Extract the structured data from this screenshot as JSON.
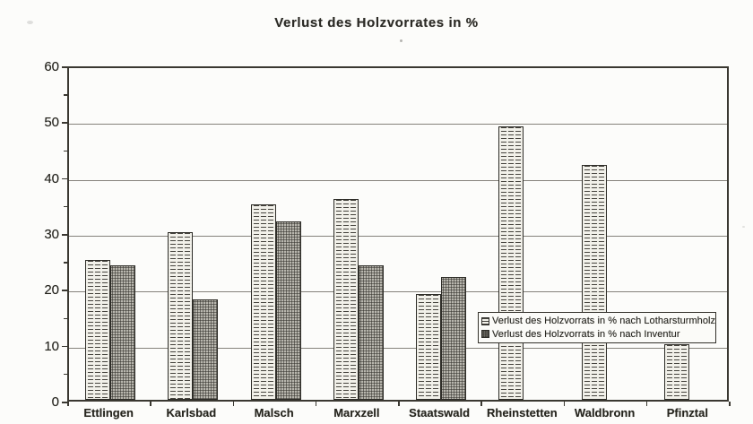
{
  "chart_data": {
    "type": "bar",
    "title": "Verlust des Holzvorrates in %",
    "categories": [
      "Ettlingen",
      "Karlsbad",
      "Malsch",
      "Marxzell",
      "Staatswald",
      "Rheinstetten",
      "Waldbronn",
      "Pfinztal"
    ],
    "series": [
      {
        "name": "Verlust des Holzvorrats in % nach Lotharsturmholz",
        "pattern": "horizontal-dashed-lines-on-white",
        "values": [
          25,
          30,
          35,
          36,
          19,
          49,
          42,
          10
        ]
      },
      {
        "name": "Verlust des Holzvorrats in % nach Inventur",
        "pattern": "dark-gray-speckle",
        "values": [
          24,
          18,
          32,
          24,
          22,
          null,
          null,
          null
        ]
      }
    ],
    "xlabel": "",
    "ylabel": "",
    "ylim": [
      0,
      60
    ],
    "yticks": [
      0,
      10,
      20,
      30,
      40,
      50,
      60
    ],
    "minor_tick_step": 5,
    "grid": true,
    "legend_position": "inside-right-middle"
  },
  "colors": {
    "background": "#fcfcfa",
    "ink": "#262520",
    "gridline": "#85827b",
    "bar_light_bg": "#f2f1ea",
    "bar_dark_bg": "#8e8d86"
  }
}
